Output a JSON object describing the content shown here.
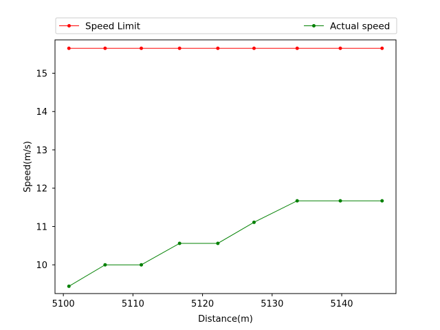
{
  "chart_data": {
    "type": "line",
    "title": "",
    "xlabel": "Distance(m)",
    "ylabel": "Speed(m/s)",
    "xlim": [
      5098.8,
      5147.8
    ],
    "ylim": [
      9.25,
      15.87
    ],
    "xticks": [
      5100,
      5110,
      5120,
      5130,
      5140
    ],
    "yticks": [
      10,
      11,
      12,
      13,
      14,
      15
    ],
    "grid": false,
    "legend_position": "top, above plot",
    "x": [
      5100.8,
      5106.0,
      5111.2,
      5116.7,
      5122.2,
      5127.4,
      5133.6,
      5139.8,
      5145.8
    ],
    "series": [
      {
        "name": "Speed Limit",
        "color": "#ff0000",
        "marker": "circle",
        "values": [
          15.65,
          15.65,
          15.65,
          15.65,
          15.65,
          15.65,
          15.65,
          15.65,
          15.65
        ]
      },
      {
        "name": "Actual speed",
        "color": "#008000",
        "marker": "circle",
        "values": [
          9.44,
          10.0,
          10.0,
          10.56,
          10.56,
          11.11,
          11.67,
          11.67,
          11.67
        ]
      }
    ]
  }
}
